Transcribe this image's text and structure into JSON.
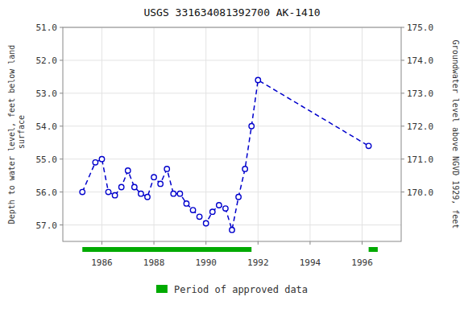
{
  "chart_data": {
    "type": "line",
    "title": "USGS 331634081392700 AK-1410",
    "ylabel": "Depth to water level, feet below land\n surface",
    "y2label": "Groundwater level above NGVD 1929, feet",
    "x": [
      1985.25,
      1985.75,
      1986.0,
      1986.25,
      1986.5,
      1986.75,
      1987.0,
      1987.25,
      1987.5,
      1987.75,
      1988.0,
      1988.25,
      1988.5,
      1988.75,
      1989.0,
      1989.25,
      1989.5,
      1989.75,
      1990.0,
      1990.25,
      1990.5,
      1990.75,
      1991.0,
      1991.25,
      1991.5,
      1991.75,
      1992.0,
      1996.25
    ],
    "values": [
      56.0,
      55.1,
      55.0,
      56.0,
      56.1,
      55.85,
      55.35,
      55.85,
      56.05,
      56.15,
      55.55,
      55.75,
      55.3,
      56.05,
      56.05,
      56.35,
      56.55,
      56.75,
      56.95,
      56.6,
      56.4,
      56.5,
      57.15,
      56.15,
      55.3,
      54.0,
      52.6,
      54.6
    ],
    "color": "#0000cc",
    "line_style": "dashed",
    "marker": "circle",
    "xlim": [
      1984.5,
      1997.5
    ],
    "xticks": [
      1986,
      1988,
      1990,
      1992,
      1994,
      1996
    ],
    "ylim": [
      57.5,
      51.0
    ],
    "yticks": [
      {
        "value": 51.0,
        "label": "51.0"
      },
      {
        "value": 52.0,
        "label": "52.0"
      },
      {
        "value": 53.0,
        "label": "53.0"
      },
      {
        "value": 54.0,
        "label": "54.0"
      },
      {
        "value": 55.0,
        "label": "55.0"
      },
      {
        "value": 56.0,
        "label": "56.0"
      },
      {
        "value": 57.0,
        "label": "57.0"
      }
    ],
    "y2lim": [
      168.5,
      175.0
    ],
    "y2ticks": [
      {
        "value": 170.0,
        "label": "170.0"
      },
      {
        "value": 171.0,
        "label": "171.0"
      },
      {
        "value": 172.0,
        "label": "172.0"
      },
      {
        "value": 173.0,
        "label": "173.0"
      },
      {
        "value": 174.0,
        "label": "174.0"
      },
      {
        "value": 175.0,
        "label": "175.0"
      }
    ],
    "grid": true,
    "legend": "bottom",
    "approved_periods": {
      "name": "Period of approved data",
      "color": "#00aa00",
      "ranges": [
        [
          1985.25,
          1991.75
        ],
        [
          1996.25,
          1996.6
        ]
      ]
    }
  }
}
